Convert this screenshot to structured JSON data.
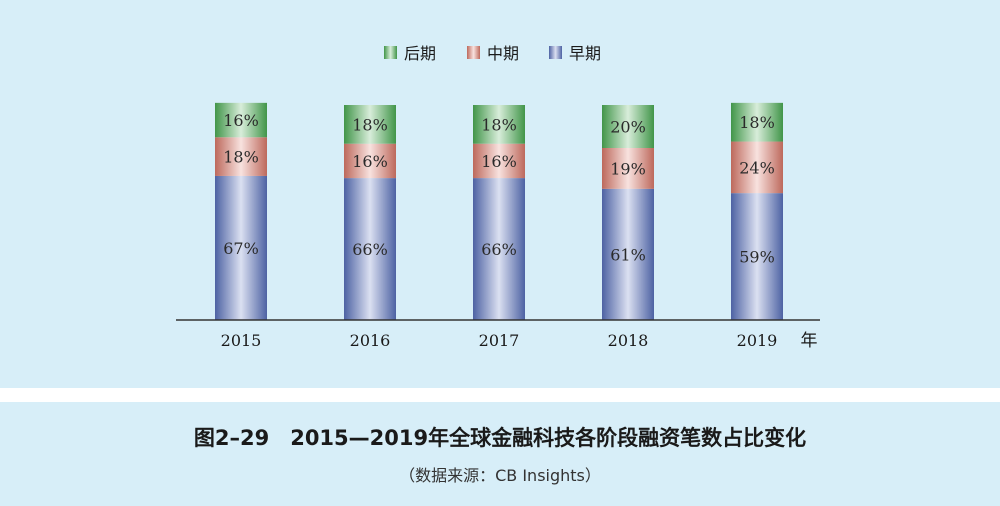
{
  "chart_data": {
    "type": "bar",
    "stacked": true,
    "categories": [
      "2015",
      "2016",
      "2017",
      "2018",
      "2019"
    ],
    "series": [
      {
        "name": "早期",
        "values": [
          67,
          66,
          66,
          61,
          59
        ],
        "color": "#5a73c0",
        "labels": [
          "67%",
          "66%",
          "66%",
          "61%",
          "59%"
        ]
      },
      {
        "name": "中期",
        "values": [
          18,
          16,
          16,
          19,
          24
        ],
        "color": "#de7c6c",
        "labels": [
          "18%",
          "16%",
          "16%",
          "19%",
          "24%"
        ]
      },
      {
        "name": "后期",
        "values": [
          16,
          18,
          18,
          20,
          18
        ],
        "color": "#4caf56",
        "labels": [
          "16%",
          "18%",
          "18%",
          "20%",
          "18%"
        ]
      }
    ],
    "legend_order": [
      "后期",
      "中期",
      "早期"
    ],
    "legend_position": "top-center",
    "xunit": "年",
    "grid": false
  },
  "caption": {
    "title": "图2–29　2015—2019年全球金融科技各阶段融资笔数占比变化",
    "source": "（数据来源：CB Insights）"
  }
}
